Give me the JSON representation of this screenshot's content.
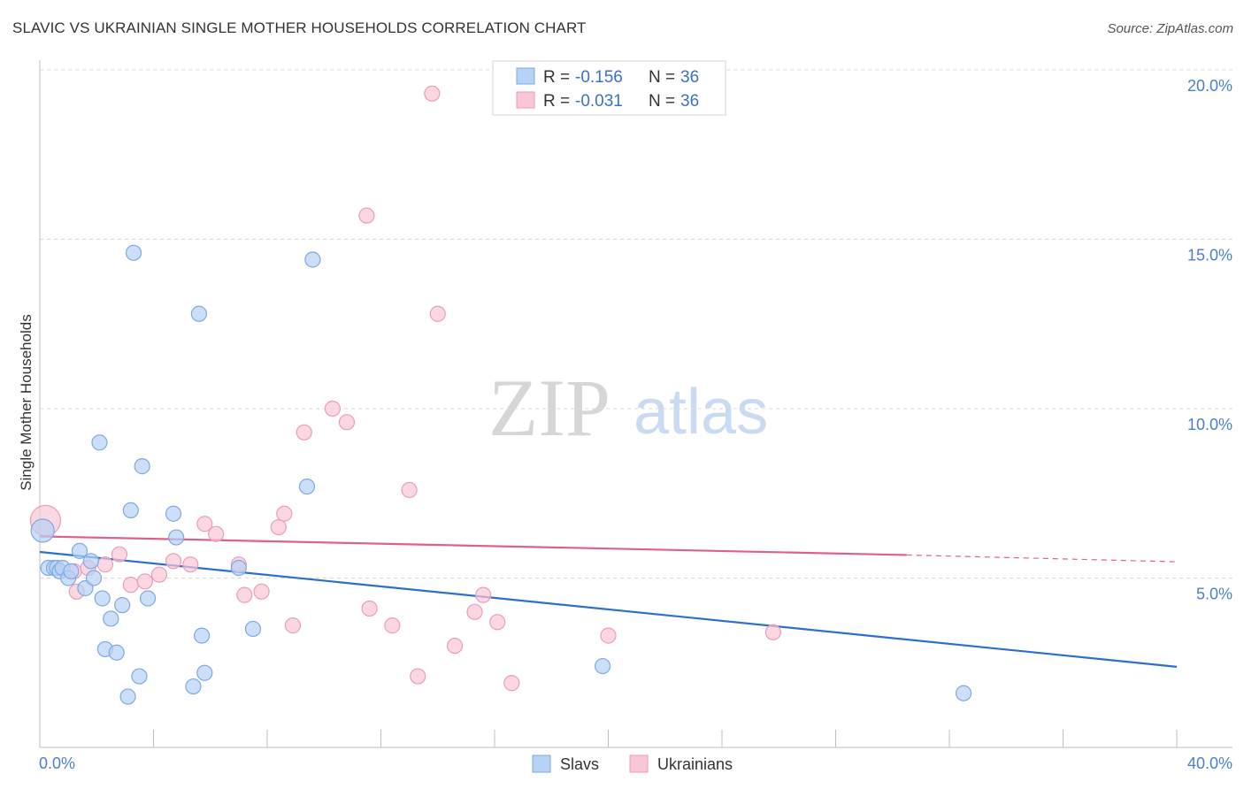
{
  "title": "SLAVIC VS UKRAINIAN SINGLE MOTHER HOUSEHOLDS CORRELATION CHART",
  "source": "Source: ZipAtlas.com",
  "watermark": {
    "zip": "ZIP",
    "atlas": "atlas"
  },
  "colors": {
    "slavs_fill": "#b7d2f5",
    "slavs_stroke": "#7ea9e3",
    "slavs_line": "#2d6fd0",
    "ukr_fill": "#f9c6d5",
    "ukr_stroke": "#ec9db5",
    "ukr_line": "#e0608a",
    "grid": "#d9d9d9",
    "axis_text": "#4a7fd0"
  },
  "legend": {
    "rows": [
      {
        "r_label": "R =",
        "r_value": "-0.156",
        "n_label": "N =",
        "n_value": "36"
      },
      {
        "r_label": "R =",
        "r_value": "-0.031",
        "n_label": "N =",
        "n_value": "36"
      }
    ]
  },
  "chart_data": {
    "type": "scatter",
    "title": "SLAVIC VS UKRAINIAN SINGLE MOTHER HOUSEHOLDS CORRELATION CHART",
    "xlabel": "",
    "ylabel": "Single Mother Households",
    "xlim": [
      0,
      40
    ],
    "ylim": [
      0,
      20.5
    ],
    "x_tick_labels": [
      "0.0%",
      "40.0%"
    ],
    "y_ticks": [
      5,
      10,
      15,
      20
    ],
    "y_tick_labels": [
      "5.0%",
      "10.0%",
      "15.0%",
      "20.0%"
    ],
    "series": [
      {
        "name": "Slavs",
        "points": [
          [
            0.1,
            6.4
          ],
          [
            0.3,
            5.3
          ],
          [
            0.5,
            5.3
          ],
          [
            0.6,
            5.3
          ],
          [
            0.7,
            5.2
          ],
          [
            0.8,
            5.3
          ],
          [
            1.0,
            5.0
          ],
          [
            1.1,
            5.2
          ],
          [
            1.4,
            5.8
          ],
          [
            1.6,
            4.7
          ],
          [
            1.8,
            5.5
          ],
          [
            1.9,
            5.0
          ],
          [
            2.1,
            9.0
          ],
          [
            2.2,
            4.4
          ],
          [
            2.3,
            2.9
          ],
          [
            2.5,
            3.8
          ],
          [
            2.7,
            2.8
          ],
          [
            2.9,
            4.2
          ],
          [
            3.1,
            1.5
          ],
          [
            3.2,
            7.0
          ],
          [
            3.3,
            14.6
          ],
          [
            3.5,
            2.1
          ],
          [
            3.6,
            8.3
          ],
          [
            3.8,
            4.4
          ],
          [
            4.7,
            6.9
          ],
          [
            4.8,
            6.2
          ],
          [
            5.4,
            1.8
          ],
          [
            5.6,
            12.8
          ],
          [
            5.7,
            3.3
          ],
          [
            5.8,
            2.2
          ],
          [
            7.0,
            5.3
          ],
          [
            7.5,
            3.5
          ],
          [
            9.4,
            7.7
          ],
          [
            9.6,
            14.4
          ],
          [
            19.8,
            2.4
          ],
          [
            32.5,
            1.6
          ]
        ]
      },
      {
        "name": "Ukrainians",
        "points": [
          [
            0.2,
            6.7
          ],
          [
            1.2,
            5.2
          ],
          [
            1.3,
            4.6
          ],
          [
            1.7,
            5.3
          ],
          [
            2.3,
            5.4
          ],
          [
            2.8,
            5.7
          ],
          [
            3.2,
            4.8
          ],
          [
            3.7,
            4.9
          ],
          [
            4.2,
            5.1
          ],
          [
            4.7,
            5.5
          ],
          [
            5.3,
            5.4
          ],
          [
            5.8,
            6.6
          ],
          [
            6.2,
            6.3
          ],
          [
            7.0,
            5.4
          ],
          [
            7.2,
            4.5
          ],
          [
            7.8,
            4.6
          ],
          [
            8.4,
            6.5
          ],
          [
            8.6,
            6.9
          ],
          [
            8.9,
            3.6
          ],
          [
            9.3,
            9.3
          ],
          [
            10.3,
            10.0
          ],
          [
            10.8,
            9.6
          ],
          [
            11.5,
            15.7
          ],
          [
            11.6,
            4.1
          ],
          [
            12.4,
            3.6
          ],
          [
            13.0,
            7.6
          ],
          [
            13.3,
            2.1
          ],
          [
            13.8,
            19.3
          ],
          [
            14.0,
            12.8
          ],
          [
            14.6,
            3.0
          ],
          [
            15.3,
            4.0
          ],
          [
            15.6,
            4.5
          ],
          [
            16.1,
            3.7
          ],
          [
            16.6,
            1.9
          ],
          [
            20.0,
            3.3
          ],
          [
            25.8,
            3.4
          ]
        ]
      }
    ],
    "trendlines": [
      {
        "series": "Slavs",
        "x": [
          0,
          40
        ],
        "y": [
          5.77,
          2.38
        ]
      },
      {
        "series": "Ukrainians",
        "x": [
          0,
          30.5
        ],
        "y": [
          6.23,
          5.68
        ],
        "dashed_to": [
          40,
          5.48
        ]
      }
    ]
  },
  "bottom_legend": [
    "Slavs",
    "Ukrainians"
  ]
}
